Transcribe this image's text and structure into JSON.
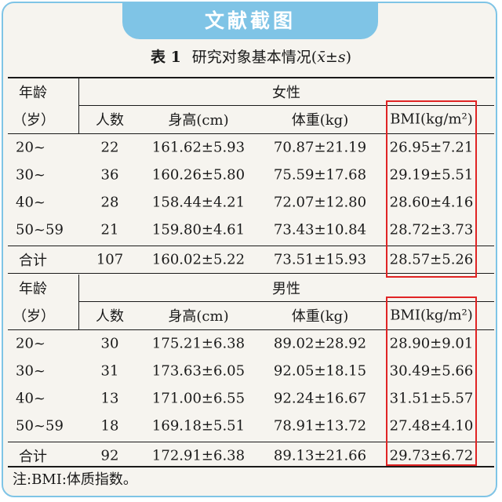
{
  "banner": "文献截图",
  "caption": {
    "number": "表 1",
    "title": "研究对象基本情况(",
    "stat": "x̄±s",
    "close": ")"
  },
  "headers": {
    "age_label_1": "年龄",
    "age_label_2": "（岁）",
    "count": "人数",
    "height": "身高(cm)",
    "weight": "体重(kg)",
    "bmi": "BMI(kg/m²)"
  },
  "groups": [
    {
      "title": "女性",
      "rows": [
        {
          "age": "20~",
          "n": "22",
          "height": "161.62±5.93",
          "weight": "70.87±21.19",
          "bmi": "26.95±7.21"
        },
        {
          "age": "30~",
          "n": "36",
          "height": "160.26±5.80",
          "weight": "75.59±17.68",
          "bmi": "29.19±5.51"
        },
        {
          "age": "40~",
          "n": "28",
          "height": "158.44±4.21",
          "weight": "72.07±12.80",
          "bmi": "28.60±4.16"
        },
        {
          "age": "50~59",
          "n": "21",
          "height": "159.80±4.61",
          "weight": "73.43±10.84",
          "bmi": "28.72±3.73"
        }
      ],
      "total": {
        "age": "合计",
        "n": "107",
        "height": "160.02±5.22",
        "weight": "73.51±15.93",
        "bmi": "28.57±5.26"
      }
    },
    {
      "title": "男性",
      "rows": [
        {
          "age": "20~",
          "n": "30",
          "height": "175.21±6.38",
          "weight": "89.02±28.92",
          "bmi": "28.90±9.01"
        },
        {
          "age": "30~",
          "n": "31",
          "height": "173.63±6.05",
          "weight": "92.05±18.15",
          "bmi": "30.49±5.66"
        },
        {
          "age": "40~",
          "n": "13",
          "height": "171.00±6.55",
          "weight": "92.24±16.67",
          "bmi": "31.51±5.57"
        },
        {
          "age": "50~59",
          "n": "18",
          "height": "169.18±5.51",
          "weight": "78.91±13.72",
          "bmi": "27.48±4.10"
        }
      ],
      "total": {
        "age": "合计",
        "n": "92",
        "height": "172.91±6.38",
        "weight": "89.13±21.66",
        "bmi": "29.73±6.72"
      }
    }
  ],
  "note": "注:BMI:体质指数。",
  "colors": {
    "frame": "#7fc4e6",
    "highlight": "#e02424",
    "background": "#f6f4ef"
  }
}
